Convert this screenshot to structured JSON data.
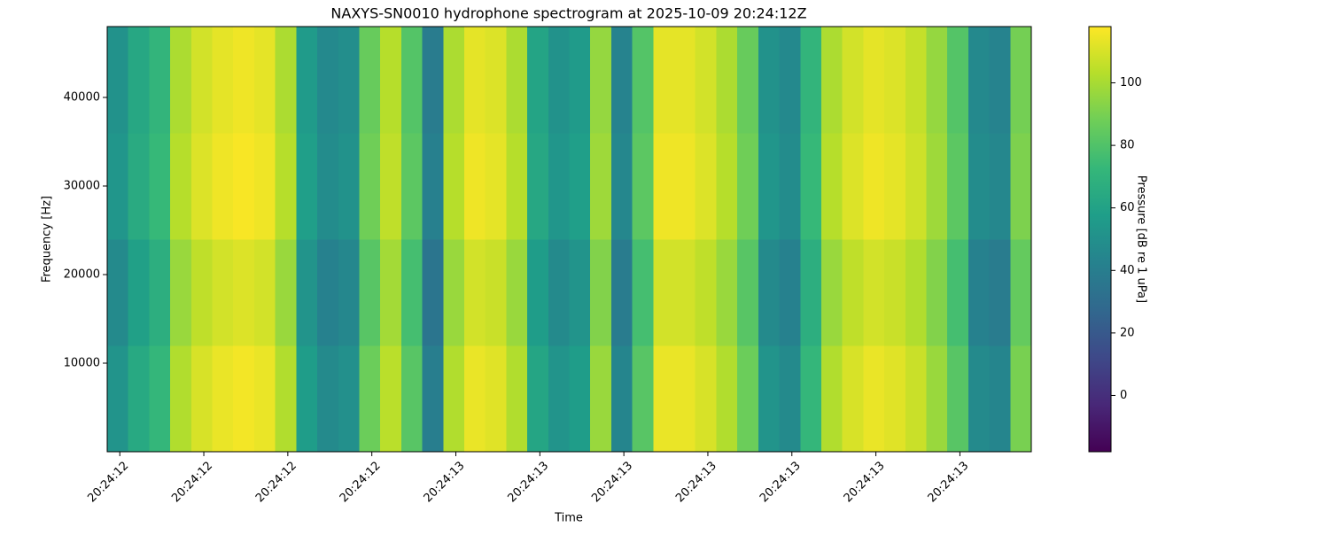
{
  "chart_data": {
    "type": "heatmap",
    "title": "NAXYS-SN0010 hydrophone spectrogram at 2025-10-09 20:24:12Z",
    "xlabel": "Time",
    "ylabel": "Frequency [Hz]",
    "colorbar_label": "Pressure [dB re 1 uPa]",
    "cmap": "viridis",
    "xlim": [
      73452.585,
      73453.685
    ],
    "ylim": [
      0,
      48000
    ],
    "clim": [
      -18,
      118
    ],
    "xticks": [
      {
        "value": 73452.6,
        "label": "20:24:12"
      },
      {
        "value": 73452.7,
        "label": "20:24:12"
      },
      {
        "value": 73452.8,
        "label": "20:24:12"
      },
      {
        "value": 73452.9,
        "label": "20:24:12"
      },
      {
        "value": 73453.0,
        "label": "20:24:13"
      },
      {
        "value": 73453.1,
        "label": "20:24:13"
      },
      {
        "value": 73453.2,
        "label": "20:24:13"
      },
      {
        "value": 73453.3,
        "label": "20:24:13"
      },
      {
        "value": 73453.4,
        "label": "20:24:13"
      },
      {
        "value": 73453.5,
        "label": "20:24:13"
      },
      {
        "value": 73453.6,
        "label": "20:24:13"
      }
    ],
    "yticks": [
      10000,
      20000,
      30000,
      40000
    ],
    "cticks": [
      0,
      20,
      40,
      60,
      80,
      100
    ],
    "x": [
      73452.5975,
      73452.6225,
      73452.6475,
      73452.6725,
      73452.6975,
      73452.7225,
      73452.7475,
      73452.7725,
      73452.7975,
      73452.8225,
      73452.8475,
      73452.8725,
      73452.8975,
      73452.9225,
      73452.9475,
      73452.9725,
      73452.9975,
      73453.0225,
      73453.0475,
      73453.0725,
      73453.0975,
      73453.1225,
      73453.1475,
      73453.1725,
      73453.1975,
      73453.2225,
      73453.2475,
      73453.2725,
      73453.2975,
      73453.3225,
      73453.3475,
      73453.3725,
      73453.3975,
      73453.4225,
      73453.4475,
      73453.4725,
      73453.4975,
      73453.5225,
      73453.5475,
      73453.5725,
      73453.5975,
      73453.6225,
      73453.6475,
      73453.6725
    ],
    "y": [
      6000,
      18000,
      30000,
      42000
    ],
    "z": [
      [
        52,
        64,
        72,
        102,
        110,
        114,
        116,
        114,
        102,
        57,
        47,
        50,
        87,
        104,
        82,
        40,
        102,
        114,
        112,
        102,
        62,
        52,
        57,
        97,
        44,
        82,
        114,
        114,
        110,
        102,
        87,
        52,
        47,
        72,
        102,
        110,
        114,
        112,
        107,
        97,
        82,
        47,
        44,
        90
      ],
      [
        47,
        59,
        67,
        97,
        105,
        109,
        111,
        109,
        97,
        52,
        42,
        45,
        82,
        99,
        77,
        35,
        97,
        109,
        107,
        97,
        57,
        47,
        52,
        92,
        39,
        77,
        109,
        109,
        105,
        97,
        82,
        47,
        42,
        67,
        97,
        105,
        109,
        107,
        102,
        92,
        77,
        42,
        39,
        85
      ],
      [
        53,
        65,
        73,
        103,
        111,
        115,
        117,
        115,
        103,
        58,
        48,
        51,
        88,
        105,
        83,
        41,
        103,
        115,
        113,
        103,
        63,
        53,
        58,
        98,
        45,
        83,
        115,
        115,
        111,
        103,
        88,
        53,
        48,
        73,
        103,
        111,
        115,
        113,
        108,
        98,
        83,
        48,
        45,
        91
      ],
      [
        51,
        63,
        71,
        101,
        109,
        113,
        115,
        113,
        101,
        56,
        46,
        49,
        86,
        103,
        81,
        39,
        101,
        113,
        111,
        101,
        61,
        51,
        56,
        96,
        43,
        81,
        113,
        113,
        109,
        101,
        86,
        51,
        46,
        71,
        101,
        109,
        113,
        111,
        106,
        96,
        81,
        46,
        43,
        89
      ]
    ]
  }
}
